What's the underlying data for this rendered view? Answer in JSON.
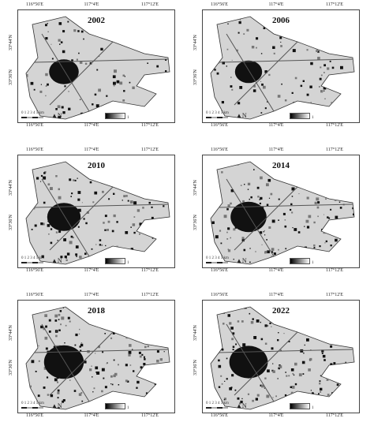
{
  "longitude_labels": [
    "116°56'E",
    "117°4'E",
    "117°12'E"
  ],
  "latitude_labels": [
    "33°44'N",
    "33°36'N"
  ],
  "scale": {
    "ticks": "0 1 2 3 4 5",
    "unit": "km"
  },
  "north_symbol": "N",
  "legend_marker": "1",
  "panels": [
    {
      "year": "2002"
    },
    {
      "year": "2006"
    },
    {
      "year": "2010"
    },
    {
      "year": "2014"
    },
    {
      "year": "2018"
    },
    {
      "year": "2022"
    }
  ],
  "colors": {
    "built_up": "#111111",
    "vegetation": "#bbbbbb",
    "background": "#ffffff"
  }
}
